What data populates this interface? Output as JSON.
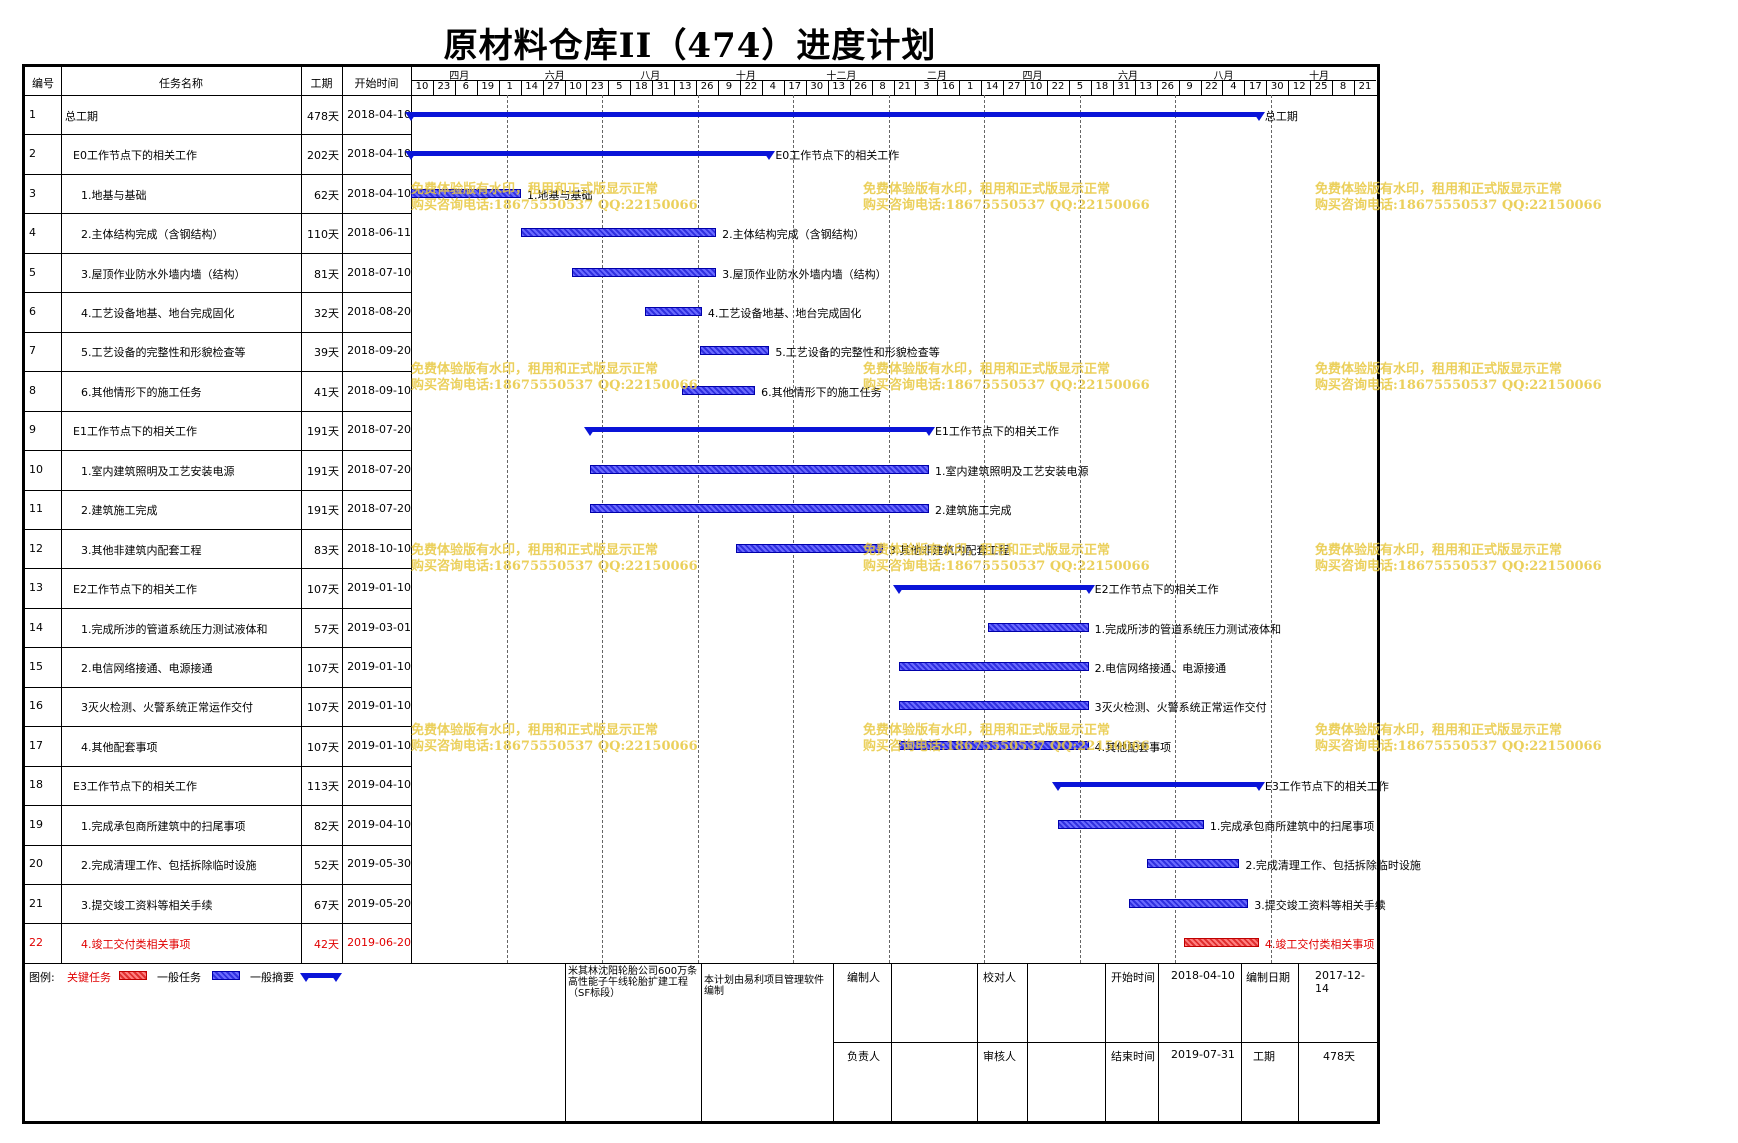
{
  "title": "原材料仓库II（474）进度计划",
  "headers": {
    "id": "编号",
    "name": "任务名称",
    "duration": "工期",
    "start": "开始时间"
  },
  "months": [
    "四月",
    "六月",
    "八月",
    "十月",
    "十二月",
    "二月",
    "四月",
    "六月",
    "八月",
    "十月"
  ],
  "days": [
    "10",
    "23",
    "6",
    "19",
    "1",
    "14",
    "27",
    "10",
    "23",
    "5",
    "18",
    "31",
    "13",
    "26",
    "9",
    "22",
    "4",
    "17",
    "30",
    "13",
    "26",
    "8",
    "21",
    "3",
    "16",
    "1",
    "14",
    "27",
    "10",
    "22",
    "5",
    "18",
    "31",
    "13",
    "26",
    "9",
    "22",
    "4",
    "17",
    "30",
    "12",
    "25",
    "8",
    "21"
  ],
  "tasks": [
    {
      "id": "1",
      "name": "总工期",
      "dur": "478天",
      "start": "2018-04-10",
      "type": "summary",
      "label": "总工期",
      "level": 0
    },
    {
      "id": "2",
      "name": "E0工作节点下的相关工作",
      "dur": "202天",
      "start": "2018-04-10",
      "type": "summary",
      "label": "E0工作节点下的相关工作",
      "level": 1
    },
    {
      "id": "3",
      "name": "1.地基与基础",
      "dur": "62天",
      "start": "2018-04-10",
      "type": "task",
      "label": "1.地基与基础",
      "level": 2
    },
    {
      "id": "4",
      "name": "2.主体结构完成（含钢结构）",
      "dur": "110天",
      "start": "2018-06-11",
      "type": "task",
      "label": "2.主体结构完成（含钢结构）",
      "level": 2
    },
    {
      "id": "5",
      "name": "3.屋顶作业防水外墙内墙（结构）",
      "dur": "81天",
      "start": "2018-07-10",
      "type": "task",
      "label": "3.屋顶作业防水外墙内墙（结构）",
      "level": 2
    },
    {
      "id": "6",
      "name": "4.工艺设备地基、地台完成固化",
      "dur": "32天",
      "start": "2018-08-20",
      "type": "task",
      "label": "4.工艺设备地基、地台完成固化",
      "level": 2
    },
    {
      "id": "7",
      "name": "5.工艺设备的完整性和形貌检查等",
      "dur": "39天",
      "start": "2018-09-20",
      "type": "task",
      "label": "5.工艺设备的完整性和形貌检查等",
      "level": 2
    },
    {
      "id": "8",
      "name": "6.其他情形下的施工任务",
      "dur": "41天",
      "start": "2018-09-10",
      "type": "task",
      "label": "6.其他情形下的施工任务",
      "level": 2
    },
    {
      "id": "9",
      "name": "E1工作节点下的相关工作",
      "dur": "191天",
      "start": "2018-07-20",
      "type": "summary",
      "label": "E1工作节点下的相关工作",
      "level": 1
    },
    {
      "id": "10",
      "name": "1.室内建筑照明及工艺安装电源",
      "dur": "191天",
      "start": "2018-07-20",
      "type": "task",
      "label": "1.室内建筑照明及工艺安装电源",
      "level": 2
    },
    {
      "id": "11",
      "name": "2.建筑施工完成",
      "dur": "191天",
      "start": "2018-07-20",
      "type": "task",
      "label": "2.建筑施工完成",
      "level": 2
    },
    {
      "id": "12",
      "name": "3.其他非建筑内配套工程",
      "dur": "83天",
      "start": "2018-10-10",
      "type": "task",
      "label": "3.其他非建筑内配套工程",
      "level": 2
    },
    {
      "id": "13",
      "name": "E2工作节点下的相关工作",
      "dur": "107天",
      "start": "2019-01-10",
      "type": "summary",
      "label": "E2工作节点下的相关工作",
      "level": 1
    },
    {
      "id": "14",
      "name": "1.完成所涉的管道系统压力测试液体和",
      "dur": "57天",
      "start": "2019-03-01",
      "type": "task",
      "label": "1.完成所涉的管道系统压力测试液体和",
      "level": 2
    },
    {
      "id": "15",
      "name": "2.电信网络接通、电源接通",
      "dur": "107天",
      "start": "2019-01-10",
      "type": "task",
      "label": "2.电信网络接通、电源接通",
      "level": 2
    },
    {
      "id": "16",
      "name": "3灭火检测、火警系统正常运作交付",
      "dur": "107天",
      "start": "2019-01-10",
      "type": "task",
      "label": "3灭火检测、火警系统正常运作交付",
      "level": 2
    },
    {
      "id": "17",
      "name": "4.其他配套事项",
      "dur": "107天",
      "start": "2019-01-10",
      "type": "task",
      "label": "4.其他配套事项",
      "level": 2
    },
    {
      "id": "18",
      "name": "E3工作节点下的相关工作",
      "dur": "113天",
      "start": "2019-04-10",
      "type": "summary",
      "label": "E3工作节点下的相关工作",
      "level": 1
    },
    {
      "id": "19",
      "name": "1.完成承包商所建筑中的扫尾事项",
      "dur": "82天",
      "start": "2019-04-10",
      "type": "task",
      "label": "1.完成承包商所建筑中的扫尾事项",
      "level": 2
    },
    {
      "id": "20",
      "name": "2.完成清理工作、包括拆除临时设施",
      "dur": "52天",
      "start": "2019-05-30",
      "type": "task",
      "label": "2.完成清理工作、包括拆除临时设施",
      "level": 2
    },
    {
      "id": "21",
      "name": "3.提交竣工资料等相关手续",
      "dur": "67天",
      "start": "2019-05-20",
      "type": "task",
      "label": "3.提交竣工资料等相关手续",
      "level": 2
    },
    {
      "id": "22",
      "name": "4.竣工交付类相关事项",
      "dur": "42天",
      "start": "2019-06-20",
      "type": "critical",
      "label": "4.竣工交付类相关事项",
      "level": 2
    }
  ],
  "watermark": {
    "line1": "免费体验版有水印，租用和正式版显示正常",
    "line2": "购买咨询电话:18675550537 QQ:22150066"
  },
  "legend": {
    "label": "图例:",
    "critical": "关键任务",
    "general": "一般任务",
    "summary": "一般摘要"
  },
  "footer": {
    "company": "米其林沈阳轮胎公司600万条高性能子午线轮胎扩建工程（SF标段）",
    "software": "本计划由易利项目管理软件编制",
    "compiler_label": "编制人",
    "checker_label": "校对人",
    "owner_label": "负责人",
    "reviewer_label": "审核人",
    "start_label": "开始时间",
    "start_value": "2018-04-10",
    "end_label": "结束时间",
    "end_value": "2019-07-31",
    "date_label": "编制日期",
    "date_value": "2017-12-14",
    "dur_label": "工期",
    "dur_value": "478天"
  },
  "colors": {
    "summary": "#0a14d8",
    "task": "#4848f0",
    "critical": "#f05050",
    "critical_text": "#e00000",
    "watermark": "#e8c840"
  }
}
